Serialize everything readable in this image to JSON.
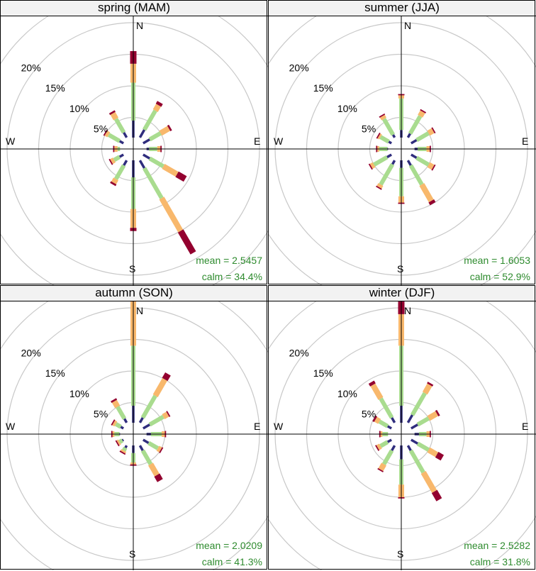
{
  "chart_data": {
    "type": "wind-rose",
    "colors": {
      "band1": "#2f2d7d",
      "band2": "#a9dc8f",
      "band3": "#f8b86c",
      "band4": "#93002f",
      "grid": "#c8c8c8",
      "axis": "#000000",
      "stats": "#2e8b2e"
    },
    "directions_deg": [
      0,
      30,
      60,
      90,
      120,
      150,
      180,
      210,
      240,
      270,
      300,
      330
    ],
    "compass": {
      "n": "N",
      "e": "E",
      "s": "S",
      "w": "W"
    },
    "rings": [
      {
        "value": 5,
        "label": "5%"
      },
      {
        "value": 10,
        "label": "10%"
      },
      {
        "value": 15,
        "label": "15%"
      },
      {
        "value": 20,
        "label": "20%"
      },
      {
        "value": 25,
        "label": ""
      }
    ],
    "panels": [
      {
        "title": "spring (MAM)",
        "mean": "mean = 2.5457",
        "calm": "calm = 34.4%",
        "cumulative": [
          [
            4.5,
            10.5,
            13.5,
            15.5
          ],
          [
            3.5,
            7.0,
            8.0,
            8.5
          ],
          [
            3.0,
            5.0,
            6.5,
            6.8
          ],
          [
            2.5,
            3.8,
            4.3,
            4.5
          ],
          [
            3.0,
            5.5,
            8.0,
            9.5
          ],
          [
            3.5,
            9.0,
            15.0,
            19.0
          ],
          [
            4.5,
            9.5,
            12.5,
            13.0
          ],
          [
            3.0,
            5.5,
            6.2,
            6.5
          ],
          [
            2.5,
            3.5,
            4.0,
            4.2
          ],
          [
            1.8,
            2.5,
            3.0,
            3.2
          ],
          [
            2.5,
            4.5,
            5.0,
            5.2
          ],
          [
            3.0,
            5.5,
            6.5,
            6.8
          ]
        ]
      },
      {
        "title": "summer (JJA)",
        "mean": "mean = 1.6053",
        "calm": "calm = 52.9%",
        "cumulative": [
          [
            3.0,
            8.0,
            8.5,
            8.7
          ],
          [
            2.8,
            6.0,
            6.8,
            7.0
          ],
          [
            2.8,
            5.0,
            5.8,
            6.0
          ],
          [
            2.6,
            4.0,
            4.5,
            4.7
          ],
          [
            2.8,
            5.0,
            5.8,
            6.0
          ],
          [
            3.0,
            6.5,
            9.5,
            10.0
          ],
          [
            3.0,
            7.5,
            8.5,
            8.7
          ],
          [
            2.8,
            6.5,
            7.0,
            7.2
          ],
          [
            2.6,
            5.0,
            5.5,
            5.7
          ],
          [
            2.2,
            3.5,
            3.8,
            4.0
          ],
          [
            2.3,
            3.8,
            4.1,
            4.3
          ],
          [
            2.6,
            5.5,
            6.0,
            6.2
          ]
        ]
      },
      {
        "title": "autumn (SON)",
        "mean": "mean = 2.0209",
        "calm": "calm = 41.3%",
        "cumulative": [
          [
            4.5,
            14.0,
            21.0,
            22.5
          ],
          [
            3.0,
            7.0,
            10.0,
            11.0
          ],
          [
            3.0,
            5.5,
            6.3,
            6.5
          ],
          [
            2.8,
            4.5,
            5.0,
            5.2
          ],
          [
            2.8,
            4.5,
            5.0,
            5.2
          ],
          [
            3.0,
            5.5,
            7.5,
            8.5
          ],
          [
            3.0,
            4.5,
            4.8,
            5.0
          ],
          [
            2.5,
            3.0,
            3.3,
            3.5
          ],
          [
            2.0,
            2.5,
            2.8,
            3.0
          ],
          [
            2.2,
            3.0,
            3.3,
            3.5
          ],
          [
            2.3,
            3.2,
            3.6,
            3.8
          ],
          [
            2.8,
            5.0,
            6.0,
            6.3
          ]
        ]
      },
      {
        "title": "winter (DJF)",
        "mean": "mean = 2.5282",
        "calm": "calm = 31.8%",
        "cumulative": [
          [
            4.5,
            14.0,
            19.0,
            21.0
          ],
          [
            3.5,
            7.5,
            9.0,
            9.3
          ],
          [
            3.0,
            5.0,
            6.5,
            6.8
          ],
          [
            2.8,
            4.0,
            4.5,
            4.7
          ],
          [
            3.0,
            5.0,
            6.5,
            7.5
          ],
          [
            3.0,
            7.0,
            10.5,
            12.0
          ],
          [
            4.0,
            8.0,
            10.0,
            10.2
          ],
          [
            3.0,
            5.5,
            6.5,
            6.7
          ],
          [
            2.5,
            3.8,
            4.3,
            4.5
          ],
          [
            2.0,
            3.0,
            3.3,
            3.5
          ],
          [
            2.5,
            4.0,
            4.7,
            5.0
          ],
          [
            3.0,
            6.5,
            9.0,
            9.5
          ]
        ]
      }
    ]
  }
}
